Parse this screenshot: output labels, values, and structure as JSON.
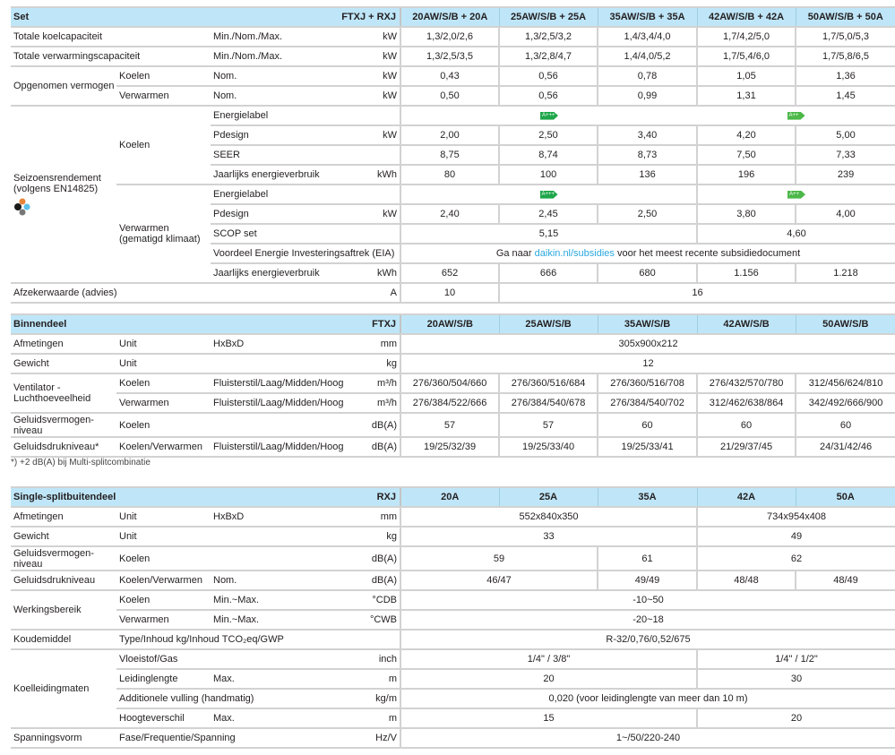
{
  "set": {
    "header": {
      "title": "Set",
      "model": "FTXJ + RXJ",
      "columns": [
        "20AW/S/B + 20A",
        "25AW/S/B + 25A",
        "35AW/S/B + 35A",
        "42AW/S/B + 42A",
        "50AW/S/B + 50A"
      ]
    },
    "groups": {
      "opgenomen": "Opgenomen vermogen",
      "seizoen_1": "Seizoensrendement",
      "seizoen_2": "(volgens EN14825)",
      "koelen": "Koelen",
      "verwarmen_1": "Verwarmen",
      "verwarmen_2": "(gematigd klimaat)"
    },
    "rows": [
      {
        "label": "Totale koelcapaciteit",
        "param": "Min./Nom./Max.",
        "unit": "kW",
        "values": [
          "1,3/2,0/2,6",
          "1,3/2,5/3,2",
          "1,4/3,4/4,0",
          "1,7/4,2/5,0",
          "1,7/5,0/5,3"
        ]
      },
      {
        "label": "Totale verwarmingscapaciteit",
        "param": "Min./Nom./Max.",
        "unit": "kW",
        "values": [
          "1,3/2,5/3,5",
          "1,3/2,8/4,7",
          "1,4/4,0/5,2",
          "1,7/5,4/6,0",
          "1,7/5,8/6,5"
        ]
      },
      {
        "sub": "Koelen",
        "param": "Nom.",
        "unit": "kW",
        "values": [
          "0,43",
          "0,56",
          "0,78",
          "1,05",
          "1,36"
        ]
      },
      {
        "sub": "Verwarmen",
        "param": "Nom.",
        "unit": "kW",
        "values": [
          "0,50",
          "0,56",
          "0,99",
          "1,31",
          "1,45"
        ]
      },
      {
        "param": "Energielabel",
        "values": [
          "A+++",
          "A++"
        ]
      },
      {
        "param": "Pdesign",
        "unit": "kW",
        "values": [
          "2,00",
          "2,50",
          "3,40",
          "4,20",
          "5,00"
        ]
      },
      {
        "param": "SEER",
        "values": [
          "8,75",
          "8,74",
          "8,73",
          "7,50",
          "7,33"
        ]
      },
      {
        "param": "Jaarlijks energieverbruik",
        "unit": "kWh",
        "values": [
          "80",
          "100",
          "136",
          "196",
          "239"
        ]
      },
      {
        "param": "Energielabel",
        "values": [
          "A+++",
          "A++"
        ]
      },
      {
        "param": "Pdesign",
        "unit": "kW",
        "values": [
          "2,40",
          "2,45",
          "2,50",
          "3,80",
          "4,00"
        ]
      },
      {
        "param": "SCOP set",
        "values": [
          "5,15",
          "4,60"
        ]
      },
      {
        "param": "Voordeel Energie Investeringsaftrek (EIA)",
        "text_before": "Ga naar ",
        "link": "daikin.nl/subsidies",
        "text_after": " voor het meest recente subsidiedocument"
      },
      {
        "param": "Jaarlijks energieverbruik",
        "unit": "kWh",
        "values": [
          "652",
          "666",
          "680",
          "1.156",
          "1.218"
        ]
      },
      {
        "label": "Afzekerwaarde (advies)",
        "unit": "A",
        "values": [
          "10",
          "16"
        ]
      }
    ],
    "energy_label_colors": {
      "a3": "#1ea64a",
      "a2": "#4cb848"
    }
  },
  "binnendeel": {
    "header": {
      "title": "Binnendeel",
      "model": "FTXJ",
      "columns": [
        "20AW/S/B",
        "25AW/S/B",
        "35AW/S/B",
        "42AW/S/B",
        "50AW/S/B"
      ]
    },
    "groups": {
      "ventilator_1": "Ventilator -",
      "ventilator_2": "Luchthoeveelheid"
    },
    "rows": [
      {
        "label": "Afmetingen",
        "sub": "Unit",
        "param": "HxBxD",
        "unit": "mm",
        "values": [
          "305x900x212"
        ]
      },
      {
        "label": "Gewicht",
        "sub": "Unit",
        "unit": "kg",
        "values": [
          "12"
        ]
      },
      {
        "sub": "Koelen",
        "param": "Fluisterstil/Laag/Midden/Hoog",
        "unit": "m³/h",
        "values": [
          "276/360/504/660",
          "276/360/516/684",
          "276/360/516/708",
          "276/432/570/780",
          "312/456/624/810"
        ]
      },
      {
        "sub": "Verwarmen",
        "param": "Fluisterstil/Laag/Midden/Hoog",
        "unit": "m³/h",
        "values": [
          "276/384/522/666",
          "276/384/540/678",
          "276/384/540/702",
          "312/462/638/864",
          "342/492/666/900"
        ]
      },
      {
        "label_1": "Geluidsvermogen-",
        "label_2": "niveau",
        "sub": "Koelen",
        "unit": "dB(A)",
        "values": [
          "57",
          "57",
          "60",
          "60",
          "60"
        ]
      },
      {
        "label": "Geluidsdrukniveau*",
        "sub": "Koelen/Verwarmen",
        "param": "Fluisterstil/Laag/Midden/Hoog",
        "unit": "dB(A)",
        "values": [
          "19/25/32/39",
          "19/25/33/40",
          "19/25/33/41",
          "21/29/37/45",
          "24/31/42/46"
        ]
      }
    ],
    "footnote": "*) +2 dB(A) bij Multi-splitcombinatie"
  },
  "buitendeel": {
    "header": {
      "title": "Single-splitbuitendeel",
      "model": "RXJ",
      "columns": [
        "20A",
        "25A",
        "35A",
        "42A",
        "50A"
      ]
    },
    "groups": {
      "werkingsbereik": "Werkingsbereik",
      "koelleiding": "Koelleidingmaten"
    },
    "rows": [
      {
        "label": "Afmetingen",
        "sub": "Unit",
        "param": "HxBxD",
        "unit": "mm",
        "values": [
          "552x840x350",
          "734x954x408"
        ]
      },
      {
        "label": "Gewicht",
        "sub": "Unit",
        "unit": "kg",
        "values": [
          "33",
          "49"
        ]
      },
      {
        "label_1": "Geluidsvermogen-",
        "label_2": "niveau",
        "sub": "Koelen",
        "unit": "dB(A)",
        "values": [
          "59",
          "61",
          "62"
        ]
      },
      {
        "label": "Geluidsdrukniveau",
        "sub": "Koelen/Verwarmen",
        "param": "Nom.",
        "unit": "dB(A)",
        "values": [
          "46/47",
          "49/49",
          "48/48",
          "48/49"
        ]
      },
      {
        "sub": "Koelen",
        "param": "Min.~Max.",
        "unit": "°CDB",
        "values": [
          "-10~50"
        ]
      },
      {
        "sub": "Verwarmen",
        "param": "Min.~Max.",
        "unit": "°CWB",
        "values": [
          "-20~18"
        ]
      },
      {
        "label": "Koudemiddel",
        "sub": "Type/Inhoud kg/Inhoud TCO₂eq/GWP",
        "values": [
          "R-32/0,76/0,52/675"
        ]
      },
      {
        "sub": "Vloeistof/Gas",
        "unit": "inch",
        "values": [
          "1/4\" / 3/8\"",
          "1/4\" / 1/2\""
        ]
      },
      {
        "sub": "Leidinglengte",
        "param": "Max.",
        "unit": "m",
        "values": [
          "20",
          "30"
        ]
      },
      {
        "sub": "Additionele vulling (handmatig)",
        "unit": "kg/m",
        "values": [
          "0,020 (voor leidinglengte van meer dan 10 m)"
        ]
      },
      {
        "sub": "Hoogteverschil",
        "param": "Max.",
        "unit": "m",
        "values": [
          "15",
          "20"
        ]
      },
      {
        "label": "Spanningsvorm",
        "sub": "Fase/Frequentie/Spanning",
        "unit": "Hz/V",
        "values": [
          "1~/50/220-240"
        ]
      }
    ]
  }
}
